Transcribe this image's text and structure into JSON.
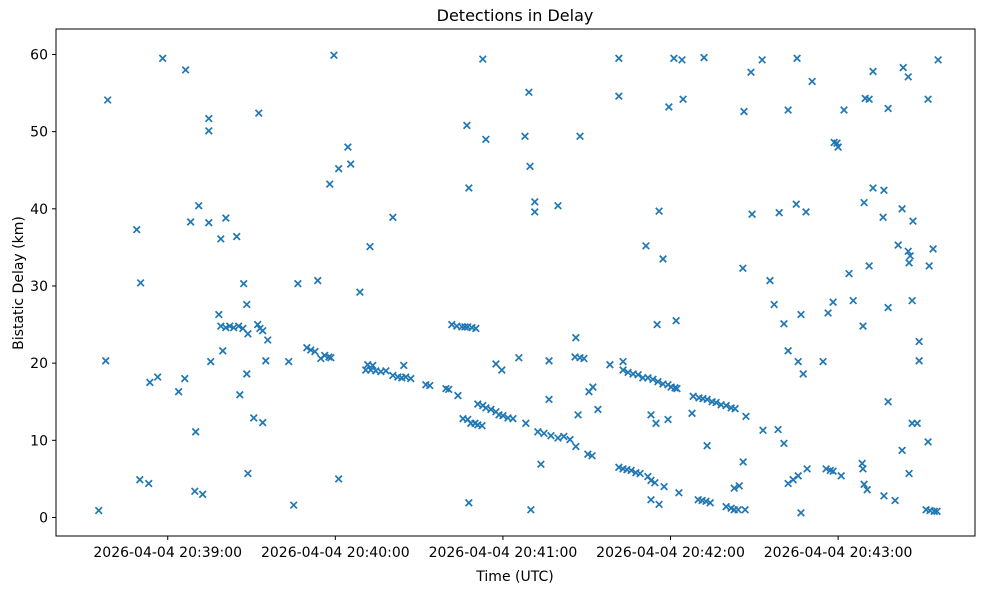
{
  "chart_data": {
    "type": "scatter",
    "title": "Detections in Delay",
    "xlabel": "Time (UTC)",
    "ylabel": "Bistatic Delay (km)",
    "marker": "x",
    "marker_color": "#1f77b4",
    "grid": false,
    "legend": "none",
    "x_unit": "seconds after 2026-04-04 20:38:00 UTC",
    "xlim": [
      20,
      349
    ],
    "ylim": [
      -2.4,
      63.3
    ],
    "y_ticks": [
      0,
      10,
      20,
      30,
      40,
      50,
      60
    ],
    "x_ticks": [
      {
        "t": 60,
        "label": "2026-04-04 20:39:00"
      },
      {
        "t": 120,
        "label": "2026-04-04 20:40:00"
      },
      {
        "t": 180,
        "label": "2026-04-04 20:41:00"
      },
      {
        "t": 240,
        "label": "2026-04-04 20:42:00"
      },
      {
        "t": 300,
        "label": "2026-04-04 20:43:00"
      }
    ],
    "points": [
      [
        58.2,
        59.5
      ],
      [
        66.4,
        58.0
      ],
      [
        38.5,
        54.1
      ],
      [
        74.7,
        51.7
      ],
      [
        74.7,
        50.1
      ],
      [
        92.6,
        52.4
      ],
      [
        119.5,
        59.9
      ],
      [
        172.8,
        59.4
      ],
      [
        167.1,
        50.8
      ],
      [
        173.9,
        49.0
      ],
      [
        124.5,
        48.0
      ],
      [
        125.5,
        45.8
      ],
      [
        121.2,
        45.2
      ],
      [
        118.0,
        43.2
      ],
      [
        167.8,
        42.7
      ],
      [
        221.5,
        59.5
      ],
      [
        241.2,
        59.5
      ],
      [
        244.1,
        59.3
      ],
      [
        252.0,
        59.6
      ],
      [
        189.3,
        55.1
      ],
      [
        221.5,
        54.6
      ],
      [
        244.5,
        54.2
      ],
      [
        239.4,
        53.2
      ],
      [
        266.3,
        52.6
      ],
      [
        187.9,
        49.4
      ],
      [
        207.6,
        49.4
      ],
      [
        189.7,
        45.5
      ],
      [
        272.8,
        59.3
      ],
      [
        285.3,
        59.5
      ],
      [
        335.8,
        59.3
      ],
      [
        268.8,
        57.7
      ],
      [
        323.3,
        58.3
      ],
      [
        325.1,
        57.1
      ],
      [
        312.5,
        57.8
      ],
      [
        290.7,
        56.5
      ],
      [
        309.7,
        54.3
      ],
      [
        311.1,
        54.2
      ],
      [
        332.2,
        54.2
      ],
      [
        282.1,
        52.8
      ],
      [
        302.1,
        52.8
      ],
      [
        317.9,
        53.0
      ],
      [
        298.6,
        48.6
      ],
      [
        299.6,
        48.5
      ],
      [
        300.0,
        48.0
      ],
      [
        312.5,
        42.7
      ],
      [
        316.4,
        42.4
      ],
      [
        71.1,
        40.4
      ],
      [
        68.2,
        38.3
      ],
      [
        74.7,
        38.2
      ],
      [
        80.8,
        38.8
      ],
      [
        48.9,
        37.3
      ],
      [
        79.0,
        36.1
      ],
      [
        84.7,
        36.4
      ],
      [
        50.3,
        30.4
      ],
      [
        87.2,
        30.3
      ],
      [
        88.3,
        27.6
      ],
      [
        78.3,
        26.3
      ],
      [
        79.0,
        24.8
      ],
      [
        80.8,
        24.6
      ],
      [
        82.2,
        24.8
      ],
      [
        83.6,
        24.6
      ],
      [
        85.4,
        24.8
      ],
      [
        86.9,
        24.5
      ],
      [
        88.7,
        23.8
      ],
      [
        92.2,
        25.0
      ],
      [
        93.0,
        24.5
      ],
      [
        94.0,
        24.2
      ],
      [
        95.8,
        23.0
      ],
      [
        79.7,
        21.6
      ],
      [
        75.4,
        20.2
      ],
      [
        37.8,
        20.3
      ],
      [
        95.1,
        20.3
      ],
      [
        140.6,
        38.9
      ],
      [
        132.4,
        35.1
      ],
      [
        106.6,
        30.3
      ],
      [
        113.7,
        30.7
      ],
      [
        128.8,
        29.2
      ],
      [
        161.7,
        25.0
      ],
      [
        163.5,
        24.8
      ],
      [
        165.3,
        24.7
      ],
      [
        166.4,
        24.7
      ],
      [
        167.4,
        24.7
      ],
      [
        168.9,
        24.6
      ],
      [
        170.3,
        24.5
      ],
      [
        109.8,
        22.0
      ],
      [
        111.2,
        21.7
      ],
      [
        112.7,
        21.5
      ],
      [
        114.8,
        20.6
      ],
      [
        116.2,
        21.0
      ],
      [
        117.7,
        20.8
      ],
      [
        118.4,
        20.7
      ],
      [
        103.3,
        20.2
      ],
      [
        131.6,
        19.8
      ],
      [
        133.4,
        19.7
      ],
      [
        144.5,
        19.7
      ],
      [
        177.5,
        19.9
      ],
      [
        179.6,
        19.1
      ],
      [
        191.4,
        40.9
      ],
      [
        191.4,
        39.6
      ],
      [
        199.7,
        40.4
      ],
      [
        235.9,
        39.7
      ],
      [
        231.2,
        35.2
      ],
      [
        237.3,
        33.5
      ],
      [
        265.9,
        32.3
      ],
      [
        235.2,
        25.0
      ],
      [
        242.0,
        25.5
      ],
      [
        206.1,
        23.3
      ],
      [
        185.7,
        20.7
      ],
      [
        196.5,
        20.3
      ],
      [
        205.8,
        20.8
      ],
      [
        207.6,
        20.7
      ],
      [
        209.0,
        20.6
      ],
      [
        218.3,
        19.8
      ],
      [
        223.0,
        20.2
      ],
      [
        269.2,
        39.3
      ],
      [
        278.9,
        39.5
      ],
      [
        285.0,
        40.6
      ],
      [
        288.5,
        39.6
      ],
      [
        309.3,
        40.8
      ],
      [
        316.1,
        38.9
      ],
      [
        322.9,
        40.0
      ],
      [
        326.8,
        38.4
      ],
      [
        321.5,
        35.3
      ],
      [
        325.1,
        34.5
      ],
      [
        325.8,
        33.9
      ],
      [
        325.4,
        33.0
      ],
      [
        334.0,
        34.8
      ],
      [
        332.6,
        32.6
      ],
      [
        275.6,
        30.7
      ],
      [
        303.9,
        31.6
      ],
      [
        311.1,
        32.6
      ],
      [
        277.1,
        27.6
      ],
      [
        280.6,
        25.1
      ],
      [
        286.7,
        26.3
      ],
      [
        296.4,
        26.5
      ],
      [
        298.2,
        27.9
      ],
      [
        305.4,
        28.1
      ],
      [
        308.9,
        24.8
      ],
      [
        317.9,
        27.2
      ],
      [
        326.5,
        28.1
      ],
      [
        329.0,
        22.8
      ],
      [
        282.1,
        21.6
      ],
      [
        285.7,
        20.2
      ],
      [
        294.6,
        20.2
      ],
      [
        329.0,
        20.3
      ],
      [
        53.6,
        17.5
      ],
      [
        56.4,
        18.2
      ],
      [
        66.1,
        18.0
      ],
      [
        63.9,
        16.3
      ],
      [
        88.3,
        18.6
      ],
      [
        85.8,
        15.9
      ],
      [
        90.8,
        12.9
      ],
      [
        94.0,
        12.3
      ],
      [
        70.0,
        11.1
      ],
      [
        88.7,
        5.7
      ],
      [
        50.0,
        4.9
      ],
      [
        53.2,
        4.4
      ],
      [
        69.7,
        3.4
      ],
      [
        72.5,
        3.0
      ],
      [
        35.3,
        0.9
      ],
      [
        130.9,
        19.1
      ],
      [
        132.7,
        19.1
      ],
      [
        134.5,
        19.0
      ],
      [
        136.3,
        18.9
      ],
      [
        138.1,
        19.0
      ],
      [
        140.6,
        18.4
      ],
      [
        142.4,
        18.2
      ],
      [
        143.8,
        18.1
      ],
      [
        145.2,
        18.2
      ],
      [
        147.0,
        18.0
      ],
      [
        152.4,
        17.2
      ],
      [
        153.8,
        17.1
      ],
      [
        159.6,
        16.7
      ],
      [
        160.6,
        16.6
      ],
      [
        163.9,
        15.8
      ],
      [
        171.0,
        14.7
      ],
      [
        172.8,
        14.5
      ],
      [
        173.9,
        14.2
      ],
      [
        175.7,
        14.0
      ],
      [
        177.5,
        13.7
      ],
      [
        178.6,
        13.3
      ],
      [
        180.0,
        13.2
      ],
      [
        181.8,
        12.9
      ],
      [
        183.6,
        12.8
      ],
      [
        165.7,
        12.8
      ],
      [
        167.4,
        12.7
      ],
      [
        168.5,
        12.2
      ],
      [
        170.0,
        12.2
      ],
      [
        171.0,
        12.0
      ],
      [
        172.5,
        11.9
      ],
      [
        121.2,
        5.0
      ],
      [
        105.1,
        1.6
      ],
      [
        167.8,
        1.9
      ],
      [
        223.0,
        19.1
      ],
      [
        224.8,
        18.8
      ],
      [
        226.6,
        18.6
      ],
      [
        228.4,
        18.5
      ],
      [
        230.1,
        18.1
      ],
      [
        231.9,
        18.1
      ],
      [
        233.7,
        17.9
      ],
      [
        235.5,
        17.6
      ],
      [
        237.3,
        17.3
      ],
      [
        239.1,
        17.2
      ],
      [
        240.2,
        16.9
      ],
      [
        241.6,
        16.8
      ],
      [
        242.3,
        16.7
      ],
      [
        248.1,
        15.7
      ],
      [
        250.2,
        15.5
      ],
      [
        251.6,
        15.4
      ],
      [
        253.1,
        15.3
      ],
      [
        254.9,
        15.0
      ],
      [
        256.3,
        14.9
      ],
      [
        258.1,
        14.6
      ],
      [
        259.9,
        14.5
      ],
      [
        261.7,
        14.2
      ],
      [
        263.1,
        14.1
      ],
      [
        267.0,
        13.1
      ],
      [
        212.2,
        16.9
      ],
      [
        210.8,
        16.3
      ],
      [
        196.5,
        15.3
      ],
      [
        206.9,
        13.3
      ],
      [
        214.0,
        14.0
      ],
      [
        188.2,
        12.2
      ],
      [
        192.5,
        11.1
      ],
      [
        194.7,
        10.9
      ],
      [
        197.2,
        10.6
      ],
      [
        199.7,
        10.3
      ],
      [
        201.8,
        10.5
      ],
      [
        204.0,
        10.1
      ],
      [
        206.1,
        9.2
      ],
      [
        210.4,
        8.2
      ],
      [
        211.9,
        8.0
      ],
      [
        193.6,
        6.9
      ],
      [
        233.0,
        13.3
      ],
      [
        234.8,
        12.2
      ],
      [
        239.1,
        12.7
      ],
      [
        247.7,
        13.5
      ],
      [
        221.5,
        6.5
      ],
      [
        223.0,
        6.3
      ],
      [
        224.4,
        6.2
      ],
      [
        225.9,
        6.1
      ],
      [
        227.6,
        5.8
      ],
      [
        229.1,
        5.7
      ],
      [
        231.9,
        5.3
      ],
      [
        233.0,
        4.8
      ],
      [
        234.4,
        4.5
      ],
      [
        237.7,
        4.0
      ],
      [
        243.0,
        3.2
      ],
      [
        233.0,
        2.3
      ],
      [
        235.9,
        1.7
      ],
      [
        249.9,
        2.3
      ],
      [
        251.3,
        2.2
      ],
      [
        252.7,
        2.1
      ],
      [
        254.2,
        1.9
      ],
      [
        259.9,
        1.4
      ],
      [
        261.7,
        1.2
      ],
      [
        262.8,
        1.0
      ],
      [
        264.2,
        1.0
      ],
      [
        190.0,
        1.0
      ],
      [
        262.8,
        3.8
      ],
      [
        264.6,
        4.1
      ],
      [
        253.1,
        9.3
      ],
      [
        266.0,
        7.2
      ],
      [
        266.7,
        1.0
      ],
      [
        287.5,
        18.6
      ],
      [
        317.9,
        15.0
      ],
      [
        273.1,
        11.3
      ],
      [
        278.5,
        11.4
      ],
      [
        280.6,
        9.6
      ],
      [
        326.5,
        12.2
      ],
      [
        328.3,
        12.2
      ],
      [
        332.2,
        9.8
      ],
      [
        322.9,
        8.7
      ],
      [
        308.6,
        7.0
      ],
      [
        308.9,
        6.3
      ],
      [
        288.9,
        6.3
      ],
      [
        295.7,
        6.3
      ],
      [
        297.2,
        6.1
      ],
      [
        298.2,
        6.0
      ],
      [
        301.1,
        5.4
      ],
      [
        285.7,
        5.4
      ],
      [
        283.9,
        4.9
      ],
      [
        282.1,
        4.4
      ],
      [
        309.3,
        4.3
      ],
      [
        310.4,
        3.6
      ],
      [
        316.4,
        2.8
      ],
      [
        320.4,
        2.2
      ],
      [
        325.4,
        5.7
      ],
      [
        286.7,
        0.6
      ],
      [
        331.5,
        1.0
      ],
      [
        332.9,
        0.9
      ],
      [
        334.4,
        0.8
      ],
      [
        335.4,
        0.8
      ]
    ]
  }
}
